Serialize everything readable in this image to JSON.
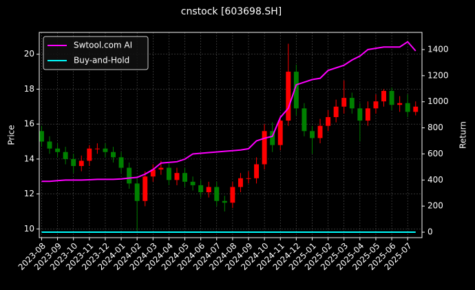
{
  "chart_data": {
    "type": "candlestick",
    "title": "cnstock [603698.SH]",
    "ylabel": "Price",
    "y2label": "Return",
    "open": [
      15.6,
      15.0,
      14.6,
      14.4,
      14.0,
      13.6,
      13.9,
      14.6,
      14.6,
      14.4,
      14.1,
      13.5,
      12.6,
      11.6,
      13.0,
      13.4,
      13.5,
      12.8,
      13.2,
      12.7,
      12.5,
      12.1,
      12.4,
      11.6,
      11.5,
      12.4,
      12.9,
      12.9,
      13.7,
      15.6,
      14.8,
      16.2,
      19.0,
      16.9,
      15.6,
      15.2,
      15.9,
      16.4,
      17.0,
      17.5,
      16.9,
      16.2,
      16.9,
      17.3,
      17.9,
      17.1,
      17.2,
      16.7
    ],
    "high": [
      15.9,
      15.3,
      14.9,
      14.7,
      14.3,
      14.2,
      14.8,
      14.9,
      14.9,
      14.7,
      14.4,
      13.8,
      12.9,
      13.3,
      13.7,
      13.9,
      13.8,
      13.5,
      13.5,
      13.0,
      12.8,
      12.7,
      12.7,
      11.9,
      12.7,
      13.2,
      13.3,
      14.1,
      16.0,
      16.1,
      16.5,
      20.6,
      19.4,
      17.2,
      15.9,
      16.3,
      16.8,
      17.4,
      18.5,
      17.8,
      17.2,
      17.3,
      17.7,
      18.0,
      18.1,
      17.6,
      17.7,
      17.3
    ],
    "low": [
      14.7,
      14.3,
      14.1,
      13.7,
      13.2,
      13.3,
      13.6,
      14.3,
      14.1,
      13.8,
      13.2,
      12.3,
      9.9,
      11.3,
      12.7,
      13.1,
      12.5,
      12.5,
      12.4,
      12.2,
      11.8,
      11.8,
      11.3,
      11.0,
      11.2,
      12.1,
      12.6,
      12.6,
      13.4,
      14.4,
      14.5,
      15.9,
      16.5,
      15.3,
      14.3,
      14.9,
      15.6,
      16.1,
      16.6,
      16.6,
      15.0,
      15.9,
      16.6,
      17.0,
      16.8,
      16.7,
      16.4,
      16.5
    ],
    "close": [
      15.0,
      14.6,
      14.4,
      14.0,
      13.6,
      13.9,
      14.6,
      14.6,
      14.4,
      14.1,
      13.5,
      12.6,
      11.6,
      13.0,
      13.4,
      13.5,
      12.8,
      13.2,
      12.7,
      12.5,
      12.1,
      12.4,
      11.6,
      11.5,
      12.4,
      12.9,
      12.9,
      13.7,
      15.6,
      14.8,
      16.2,
      19.0,
      16.9,
      15.6,
      15.2,
      15.9,
      16.4,
      17.0,
      17.5,
      16.9,
      16.2,
      16.9,
      17.3,
      17.9,
      17.1,
      17.2,
      16.7,
      17.0
    ],
    "up_color": "#ff0000",
    "down_color": "#008000",
    "series": [
      {
        "name": "Swtool.com AI",
        "color": "#ff00ff",
        "axis": "y2",
        "values": [
          390,
          390,
          395,
          400,
          400,
          400,
          402,
          405,
          405,
          405,
          408,
          415,
          420,
          445,
          480,
          530,
          535,
          540,
          560,
          600,
          605,
          610,
          615,
          620,
          625,
          630,
          640,
          700,
          720,
          735,
          880,
          950,
          1130,
          1150,
          1170,
          1180,
          1240,
          1260,
          1280,
          1320,
          1350,
          1400,
          1410,
          1420,
          1420,
          1420,
          1460,
          1390
        ]
      },
      {
        "name": "Buy-and-Hold",
        "color": "#00ffff",
        "axis": "y2",
        "values": [
          0,
          0,
          0,
          0,
          0,
          0,
          0,
          0,
          0,
          0,
          0,
          0,
          0,
          0,
          0,
          0,
          0,
          0,
          0,
          0,
          0,
          0,
          0,
          0,
          0,
          0,
          0,
          0,
          0,
          0,
          0,
          0,
          0,
          0,
          0,
          0,
          0,
          0,
          0,
          0,
          0,
          0,
          0,
          0,
          0,
          0,
          0,
          0
        ]
      }
    ],
    "xlim": [
      -0.3,
      47.8
    ],
    "xticks": [
      {
        "value": 0,
        "label": "2023-08"
      },
      {
        "value": 2,
        "label": "2023-09"
      },
      {
        "value": 4,
        "label": "2023-10"
      },
      {
        "value": 6,
        "label": "2023-11"
      },
      {
        "value": 8,
        "label": "2023-12"
      },
      {
        "value": 10,
        "label": "2024-01"
      },
      {
        "value": 12,
        "label": "2024-02"
      },
      {
        "value": 14,
        "label": "2024-03"
      },
      {
        "value": 16,
        "label": "2024-04"
      },
      {
        "value": 18,
        "label": "2024-05"
      },
      {
        "value": 20,
        "label": "2024-06"
      },
      {
        "value": 22,
        "label": "2024-07"
      },
      {
        "value": 24,
        "label": "2024-08"
      },
      {
        "value": 26,
        "label": "2024-09"
      },
      {
        "value": 28,
        "label": "2024-10"
      },
      {
        "value": 30,
        "label": "2024-11"
      },
      {
        "value": 32,
        "label": "2024-12"
      },
      {
        "value": 34,
        "label": "2025-01"
      },
      {
        "value": 36,
        "label": "2025-02"
      },
      {
        "value": 38,
        "label": "2025-03"
      },
      {
        "value": 40,
        "label": "2025-04"
      },
      {
        "value": 42,
        "label": "2025-05"
      },
      {
        "value": 44,
        "label": "2025-06"
      },
      {
        "value": 46,
        "label": "2025-07"
      }
    ],
    "ylim": [
      9.5,
      21.25
    ],
    "yticks": [
      10,
      12,
      14,
      16,
      18,
      20
    ],
    "y2lim": [
      -42,
      1532
    ],
    "y2ticks": [
      0,
      200,
      400,
      600,
      800,
      1000,
      1200,
      1400
    ],
    "grid": true,
    "legend": "upper left"
  }
}
